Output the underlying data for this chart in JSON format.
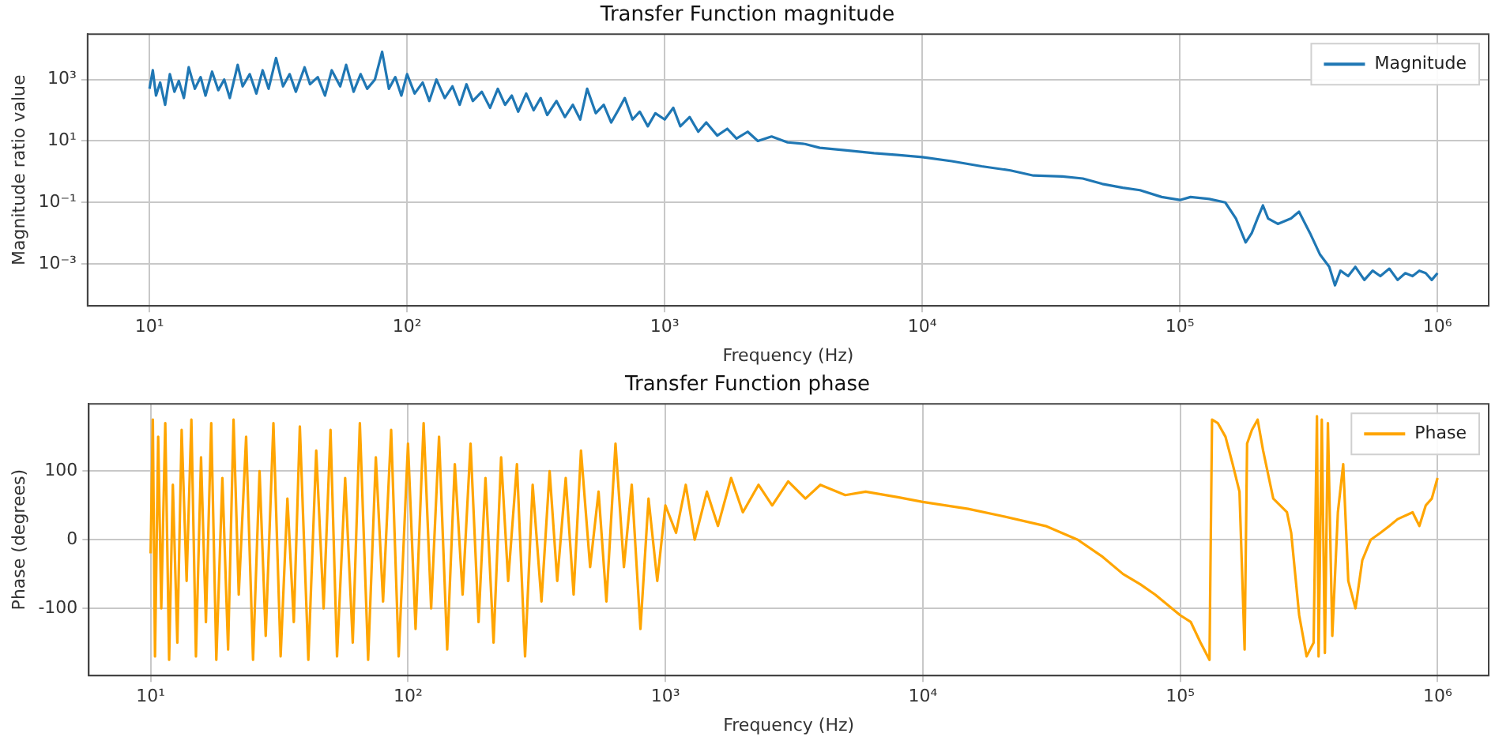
{
  "chart_data": [
    {
      "type": "line",
      "title": "Transfer Function magnitude",
      "xlabel": "Frequency (Hz)",
      "ylabel": "Magnitude ratio value",
      "log": "xy",
      "grid": true,
      "legend": "top right",
      "marker": "none",
      "line_style": "solid",
      "xlim": [
        5.75,
        1580000
      ],
      "ylim": [
        4.3e-05,
        30000
      ],
      "xticks": [
        {
          "value": 10,
          "label": "10¹"
        },
        {
          "value": 100,
          "label": "10²"
        },
        {
          "value": 1000,
          "label": "10³"
        },
        {
          "value": 10000,
          "label": "10⁴"
        },
        {
          "value": 100000,
          "label": "10⁵"
        },
        {
          "value": 1000000,
          "label": "10⁶"
        }
      ],
      "yticks": [
        {
          "value": 0.001,
          "label": "10⁻³"
        },
        {
          "value": 0.1,
          "label": "10⁻¹"
        },
        {
          "value": 10,
          "label": "10¹"
        },
        {
          "value": 1000,
          "label": "10³"
        }
      ],
      "series": [
        {
          "name": "Magnitude",
          "color": "#1f77b4",
          "x": [
            10,
            10.3,
            10.6,
            11,
            11.5,
            12,
            12.5,
            13,
            13.6,
            14.2,
            15,
            15.8,
            16.5,
            17.5,
            18.5,
            19.5,
            20.5,
            22,
            23,
            24.5,
            26,
            27.5,
            29,
            31,
            33,
            35,
            37,
            40,
            42,
            45,
            48,
            51,
            55,
            58,
            62,
            66,
            70,
            75,
            80,
            85,
            90,
            95,
            100,
            107,
            115,
            122,
            130,
            140,
            150,
            160,
            170,
            180,
            195,
            210,
            225,
            240,
            255,
            270,
            290,
            310,
            330,
            350,
            380,
            410,
            440,
            470,
            500,
            540,
            580,
            620,
            660,
            700,
            750,
            800,
            860,
            920,
            1000,
            1080,
            1150,
            1250,
            1350,
            1450,
            1600,
            1750,
            1900,
            2100,
            2300,
            2600,
            3000,
            3500,
            4000,
            5000,
            6500,
            8000,
            10000,
            13000,
            17000,
            22000,
            27000,
            35000,
            42000,
            50000,
            60000,
            70000,
            85000,
            100000,
            110000,
            130000,
            150000,
            165000,
            180000,
            190000,
            200000,
            210000,
            220000,
            240000,
            270000,
            290000,
            320000,
            350000,
            380000,
            400000,
            420000,
            450000,
            480000,
            520000,
            560000,
            600000,
            650000,
            700000,
            750000,
            800000,
            850000,
            900000,
            950000,
            1000000
          ],
          "values": [
            500,
            2000,
            300,
            800,
            150,
            1500,
            400,
            900,
            250,
            2500,
            500,
            1200,
            300,
            1800,
            450,
            1000,
            250,
            3000,
            600,
            1500,
            350,
            2000,
            500,
            5000,
            600,
            1500,
            400,
            2500,
            700,
            1200,
            300,
            2000,
            600,
            3000,
            400,
            1500,
            500,
            1000,
            8000,
            500,
            1200,
            300,
            1500,
            350,
            800,
            200,
            1000,
            250,
            600,
            150,
            700,
            200,
            400,
            120,
            500,
            150,
            300,
            90,
            350,
            100,
            250,
            70,
            200,
            60,
            150,
            50,
            500,
            80,
            150,
            40,
            100,
            250,
            50,
            90,
            30,
            80,
            50,
            120,
            30,
            60,
            20,
            40,
            15,
            25,
            12,
            20,
            10,
            14,
            9,
            8,
            6,
            5,
            4,
            3.5,
            3,
            2.2,
            1.5,
            1.1,
            0.75,
            0.7,
            0.6,
            0.4,
            0.3,
            0.25,
            0.15,
            0.12,
            0.15,
            0.13,
            0.1,
            0.03,
            0.005,
            0.01,
            0.03,
            0.08,
            0.03,
            0.02,
            0.03,
            0.05,
            0.01,
            0.002,
            0.0008,
            0.0002,
            0.0006,
            0.0004,
            0.0008,
            0.0003,
            0.0006,
            0.0004,
            0.0007,
            0.0003,
            0.0005,
            0.0004,
            0.0006,
            0.0005,
            0.0003,
            0.0005
          ]
        }
      ]
    },
    {
      "type": "line",
      "title": "Transfer Function phase",
      "xlabel": "Frequency (Hz)",
      "ylabel": "Phase (degrees)",
      "log": "x",
      "grid": true,
      "legend": "top right",
      "marker": "none",
      "line_style": "solid",
      "xlim": [
        5.75,
        1580000
      ],
      "ylim": [
        -198,
        198
      ],
      "xticks": [
        {
          "value": 10,
          "label": "10¹"
        },
        {
          "value": 100,
          "label": "10²"
        },
        {
          "value": 1000,
          "label": "10³"
        },
        {
          "value": 10000,
          "label": "10⁴"
        },
        {
          "value": 100000,
          "label": "10⁵"
        },
        {
          "value": 1000000,
          "label": "10⁶"
        }
      ],
      "yticks": [
        -100,
        0,
        100
      ],
      "series": [
        {
          "name": "Phase",
          "color": "#ffa500",
          "x": [
            10,
            10.2,
            10.4,
            10.7,
            11,
            11.4,
            11.8,
            12.2,
            12.7,
            13.2,
            13.8,
            14.4,
            15,
            15.7,
            16.4,
            17.2,
            18,
            19,
            20,
            21,
            22,
            23.5,
            25,
            26.5,
            28,
            30,
            32,
            34,
            36,
            38,
            41,
            44,
            47,
            50,
            53,
            57,
            61,
            65,
            70,
            75,
            80,
            86,
            92,
            100,
            107,
            115,
            123,
            132,
            142,
            152,
            163,
            175,
            188,
            200,
            215,
            230,
            245,
            265,
            285,
            305,
            330,
            355,
            380,
            410,
            440,
            470,
            510,
            550,
            590,
            640,
            690,
            740,
            800,
            860,
            930,
            1000,
            1100,
            1200,
            1300,
            1450,
            1600,
            1800,
            2000,
            2300,
            2600,
            3000,
            3500,
            4000,
            5000,
            6000,
            8000,
            10000,
            15000,
            20000,
            30000,
            40000,
            50000,
            60000,
            70000,
            80000,
            100000,
            110000,
            120000,
            130000,
            133000,
            140000,
            150000,
            160000,
            170000,
            178000,
            182000,
            190000,
            200000,
            210000,
            230000,
            260000,
            270000,
            290000,
            310000,
            330000,
            340000,
            345000,
            355000,
            365000,
            375000,
            390000,
            410000,
            430000,
            450000,
            480000,
            510000,
            550000,
            600000,
            650000,
            700000,
            800000,
            850000,
            900000,
            950000,
            1000000
          ],
          "values": [
            -20,
            175,
            -170,
            150,
            -100,
            170,
            -175,
            80,
            -150,
            160,
            -60,
            175,
            -170,
            120,
            -120,
            170,
            -175,
            90,
            -160,
            175,
            -80,
            150,
            -175,
            100,
            -140,
            170,
            -170,
            60,
            -120,
            165,
            -175,
            130,
            -100,
            160,
            -170,
            90,
            -150,
            170,
            -175,
            120,
            -90,
            160,
            -170,
            140,
            -130,
            170,
            -100,
            150,
            -160,
            110,
            -80,
            140,
            -120,
            90,
            -150,
            120,
            -60,
            110,
            -170,
            80,
            -90,
            100,
            -60,
            90,
            -80,
            130,
            -40,
            70,
            -90,
            140,
            -40,
            80,
            -130,
            60,
            -60,
            50,
            10,
            80,
            0,
            70,
            20,
            90,
            40,
            80,
            50,
            85,
            60,
            80,
            65,
            70,
            62,
            55,
            45,
            35,
            20,
            0,
            -25,
            -50,
            -65,
            -80,
            -110,
            -120,
            -150,
            -175,
            175,
            170,
            150,
            110,
            70,
            -160,
            140,
            160,
            175,
            130,
            60,
            40,
            10,
            -110,
            -170,
            -150,
            180,
            -170,
            175,
            -165,
            170,
            -140,
            40,
            110,
            -60,
            -100,
            -30,
            0,
            10,
            20,
            30,
            40,
            20,
            50,
            60,
            90
          ]
        }
      ]
    }
  ]
}
